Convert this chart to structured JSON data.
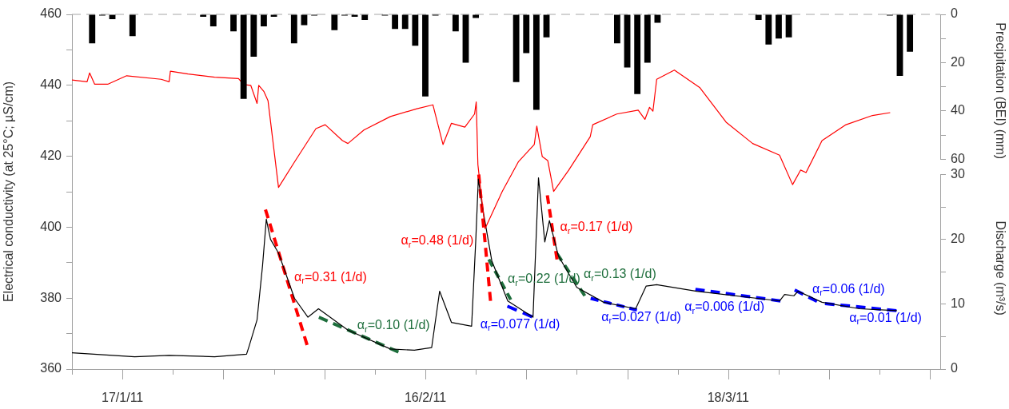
{
  "chart_data": {
    "type": "line",
    "ylabel": "Electrical conductivity (at 25°C; µS/cm)",
    "y2label": "Precipitation (BEI) (mm)",
    "y3label": "Discharge (m³/s)",
    "xlim": [
      "--01-12",
      "--04-08"
    ],
    "xticks": [
      {
        "value": "--01-12",
        "label": null
      },
      {
        "value": "--01-17",
        "label": "17/1/11"
      },
      {
        "value": "--01-22",
        "label": null
      },
      {
        "value": "--01-27",
        "label": null
      },
      {
        "value": "--02-01",
        "label": null
      },
      {
        "value": "--02-06",
        "label": null
      },
      {
        "value": "--02-11",
        "label": null
      },
      {
        "value": "--02-16",
        "label": "16/2/11"
      },
      {
        "value": "--02-21",
        "label": null
      },
      {
        "value": "--02-26",
        "label": null
      },
      {
        "value": "--03-03",
        "label": null
      },
      {
        "value": "--03-08",
        "label": null
      },
      {
        "value": "--03-13",
        "label": null
      },
      {
        "value": "--03-18",
        "label": "18/3/11"
      },
      {
        "value": "--03-23",
        "label": null
      },
      {
        "value": "--03-28",
        "label": null
      },
      {
        "value": "--04-02",
        "label": null
      },
      {
        "value": "--04-07",
        "label": null
      }
    ],
    "ylim": [
      360,
      460
    ],
    "yticks": [
      360,
      {
        "value": 370,
        "label": null
      },
      380,
      {
        "value": 390,
        "label": null
      },
      400,
      {
        "value": 410,
        "label": null
      },
      420,
      {
        "value": 430,
        "label": null
      },
      440,
      {
        "value": 450,
        "label": null
      },
      460
    ],
    "y2lim": [
      60,
      0
    ],
    "y2ticks": [
      0,
      {
        "value": 10,
        "label": null
      },
      20,
      {
        "value": 30,
        "label": null
      },
      40,
      {
        "value": 50,
        "label": null
      },
      60
    ],
    "y3lim": [
      0,
      30
    ],
    "y3ticks": [
      0,
      {
        "value": 5,
        "label": null
      },
      10,
      {
        "value": 15,
        "label": null
      },
      20,
      {
        "value": 25,
        "label": null
      },
      30
    ],
    "grid": false,
    "legend": false,
    "ref_lines": [
      {
        "axis": "y2",
        "value": 0,
        "color": "#a6a6a6",
        "line_style": "dashed"
      }
    ],
    "series": [
      {
        "type": "bar",
        "axis": "y2",
        "color": "#000000",
        "x": [
          "--01-14",
          "--01-15",
          "--01-16",
          "--01-18",
          "--01-25",
          "--01-26",
          "--01-28",
          "--01-29",
          "--01-30",
          "--01-31",
          "--02-01",
          "--02-03",
          "--02-04",
          "--02-05",
          "--02-07",
          "--02-08",
          "--02-09",
          "--02-10",
          "--02-12",
          "--02-13",
          "--02-14",
          "--02-15",
          "--02-16",
          "--02-17",
          "--02-19",
          "--02-20",
          "--02-21",
          "--02-25",
          "--02-26",
          "--02-27",
          "--02-28",
          "--03-07",
          "--03-08",
          "--03-09",
          "--03-10",
          "--03-11",
          "--03-21",
          "--03-22",
          "--03-23",
          "--03-24",
          "--04-03",
          "--04-04",
          "--04-05"
        ],
        "values": [
          12,
          0.5,
          2,
          9,
          1,
          5,
          7,
          35,
          17.5,
          5,
          1,
          12,
          4.5,
          0.5,
          6.5,
          0.5,
          1,
          2.3,
          0.5,
          6,
          6,
          13,
          34,
          0.5,
          7,
          20,
          1.5,
          28,
          16,
          39.5,
          9.5,
          12,
          22,
          33,
          20,
          3.5,
          2.3,
          12.5,
          10,
          9.5,
          0.5,
          25.5,
          15.5
        ]
      },
      {
        "axis": "y",
        "color": "#ff0000",
        "x": [
          "--01-12T00:00",
          "--01-13T12:00",
          "--01-13T18:00",
          "--01-14T06:00",
          "--01-15T13:00",
          "--01-17T10:00",
          "--01-20T20:00",
          "--01-21T15:00",
          "--01-21T18:00",
          "--01-23T12:00",
          "--01-26T03:00",
          "--01-28T12:00",
          "--01-29T00:00",
          "--01-29T17:00",
          "--01-30T08:00",
          "--01-30T12:00",
          "--01-31T00:00",
          "--01-31T10:00",
          "--02-01T11:00",
          "--02-03T01:00",
          "--02-05T04:00",
          "--02-06T02:00",
          "--02-07T19:00",
          "--02-08T08:00",
          "--02-09T22:00",
          "--02-12T13:00",
          "--02-15T04:00",
          "--02-16T18:00",
          "--02-17T18:00",
          "--02-18T14:00",
          "--02-19T22:00",
          "--02-20T21:00",
          "--02-21T01:00",
          "--02-21T05:00",
          "--02-21T22:00",
          "--02-23T15:00",
          "--02-25T05:00",
          "--02-26T19:00",
          "--02-27T01:00",
          "--02-27T14:00",
          "--02-28T03:00",
          "--02-28T17:00",
          "--03-02T05:00",
          "--03-04T08:00",
          "--03-04T14:00",
          "--03-06T23:00",
          "--03-09T02:00",
          "--03-09T18:00",
          "--03-10T05:00",
          "--03-10T13:00",
          "--03-10T22:00",
          "--03-12T16:00",
          "--03-15T04:00",
          "--03-17T19:00",
          "--03-20T10:00",
          "--03-23T02:00",
          "--03-24T09:00",
          "--03-25T04:00",
          "--03-25T17:00",
          "--03-27T07:00",
          "--03-29T16:00",
          "--04-01T07:00",
          "--04-03T01:00"
        ],
        "values": [
          441.5,
          441.0,
          443.5,
          440.3,
          440.3,
          442.7,
          441.7,
          441.0,
          444.0,
          443.2,
          442.3,
          441.9,
          440.2,
          440.0,
          434.9,
          440.0,
          438.3,
          435.7,
          411.2,
          418.4,
          427.8,
          428.9,
          424.4,
          423.6,
          427.4,
          431.2,
          433.4,
          434.5,
          423.3,
          429.3,
          428.2,
          431.9,
          435.3,
          417.6,
          399.6,
          410.1,
          418.4,
          423.3,
          428.5,
          419.9,
          418.8,
          410.1,
          416.1,
          425.5,
          428.9,
          431.9,
          433.0,
          430.4,
          433.8,
          432.7,
          441.7,
          444.3,
          439.4,
          429.6,
          423.6,
          420.3,
          412.0,
          416.1,
          415.4,
          424.4,
          428.9,
          431.5,
          432.3
        ]
      },
      {
        "axis": "y3",
        "color": "#000000",
        "x": [
          "--01-12T00:00",
          "--01-18T05:00",
          "--01-21T15:00",
          "--01-26T03:00",
          "--01-29T07:00",
          "--01-29T13:00",
          "--01-30T08:00",
          "--01-30T21:00",
          "--01-31T06:00",
          "--01-31T16:00",
          "--02-01T11:00",
          "--02-03T01:00",
          "--02-04T09:00",
          "--02-05T10:00",
          "--02-08T08:00",
          "--02-12T13:00",
          "--02-14T22:00",
          "--02-16T15:00",
          "--02-17T10:00",
          "--02-18T14:00",
          "--02-20T14:00",
          "--02-21T00:00",
          "--02-21T06:00",
          "--02-21T16:00",
          "--02-22T14:00",
          "--02-24T04:00",
          "--02-26T16:00",
          "--02-27T05:00",
          "--02-27T20:00",
          "--02-28T07:00",
          "--03-01T04:00",
          "--03-03T00:00",
          "--03-05T16:00",
          "--03-08T20:00",
          "--03-09T21:00",
          "--03-10T22:00",
          "--03-14T21:00",
          "--03-23T02:00",
          "--03-23T14:00",
          "--03-24T12:00",
          "--03-24T22:00",
          "--03-27T07:00",
          "--03-31T00:00",
          "--04-03T17:00"
        ],
        "values": [
          2.5,
          1.9,
          2.1,
          1.9,
          2.3,
          3.5,
          7.6,
          15.9,
          23.1,
          20.0,
          17.9,
          10.9,
          8.0,
          9.3,
          6.0,
          3.1,
          2.9,
          3.3,
          12.0,
          7.2,
          6.6,
          20.0,
          29.3,
          24.9,
          16.7,
          10.5,
          8.0,
          29.5,
          19.6,
          22.9,
          17.5,
          12.6,
          10.3,
          9.3,
          12.8,
          13.0,
          12.0,
          10.5,
          11.5,
          11.3,
          12.0,
          10.3,
          9.3,
          9.0
        ]
      },
      {
        "name": "α$_{r}$=0.31 (1/d)",
        "axis": "y3",
        "color": "#ff0000",
        "line_style": "dashed",
        "x": [
          "--01-31T04:00",
          "--02-04T07:00"
        ],
        "values": [
          24.6,
          3.7
        ]
      },
      {
        "name": "α$_{r}$=0.10 (1/d)",
        "axis": "y3",
        "color": "#1e6e3c",
        "line_style": "dashed",
        "x": [
          "--02-05T11:00",
          "--02-13T09:00"
        ],
        "values": [
          8.0,
          2.6
        ]
      },
      {
        "name": "α$_{r}$=0.48 (1/d)",
        "axis": "y3",
        "color": "#ff0000",
        "line_style": "dashed",
        "x": [
          "--02-21T07:00",
          "--02-22T11:00"
        ],
        "values": [
          30,
          10.5
        ]
      },
      {
        "name": "α$_{r}$=0.22 (1/d)",
        "axis": "y3",
        "color": "#1e6e3c",
        "line_style": "dashed",
        "x": [
          "--02-22T07:00",
          "--02-24T11:00"
        ],
        "values": [
          16.9,
          10.7
        ]
      },
      {
        "name": "α$_{r}$=0.077 (1/d)",
        "axis": "y3",
        "color": "#0000ff",
        "line_style": "dashed",
        "x": [
          "--02-24T03:00",
          "--02-26T16:00"
        ],
        "values": [
          9.7,
          8.0
        ]
      },
      {
        "name": "α$_{r}$=0.17 (1/d)",
        "axis": "y3",
        "color": "#ff0000",
        "line_style": "dashed",
        "x": [
          "--02-28T02:00",
          "--03-01T01:00"
        ],
        "values": [
          26.8,
          16.9
        ]
      },
      {
        "name": "α$_{r}$=0.13 (1/d)",
        "axis": "y3",
        "color": "#1e6e3c",
        "line_style": "dashed",
        "x": [
          "--03-01T01:00",
          "--03-03T19:00"
        ],
        "values": [
          17.8,
          11.3
        ]
      },
      {
        "name": "α$_{r}$=0.027 (1/d)",
        "axis": "y3",
        "color": "#0000ff",
        "line_style": "dashed",
        "x": [
          "--03-04T09:00",
          "--03-08T23:00"
        ],
        "values": [
          10.9,
          9.1
        ]
      },
      {
        "name": "α$_{r}$=0.006 (1/d)",
        "axis": "y3",
        "color": "#0000ff",
        "line_style": "dashed",
        "x": [
          "--03-14T18:00",
          "--03-23T05:00"
        ],
        "values": [
          12.3,
          10.5
        ]
      },
      {
        "name": "α$_{r}$=0.06 (1/d)",
        "axis": "y3",
        "color": "#0000ff",
        "line_style": "dashed",
        "x": [
          "--03-24T14:00",
          "--03-26T20:00"
        ],
        "values": [
          12.2,
          10.4
        ]
      },
      {
        "name": "α$_{r}$=0.01 (1/d)",
        "axis": "y3",
        "color": "#0000ff",
        "line_style": "dashed",
        "x": [
          "--03-27T14:00",
          "--04-03T17:00"
        ],
        "values": [
          10.1,
          9.0
        ]
      }
    ]
  }
}
